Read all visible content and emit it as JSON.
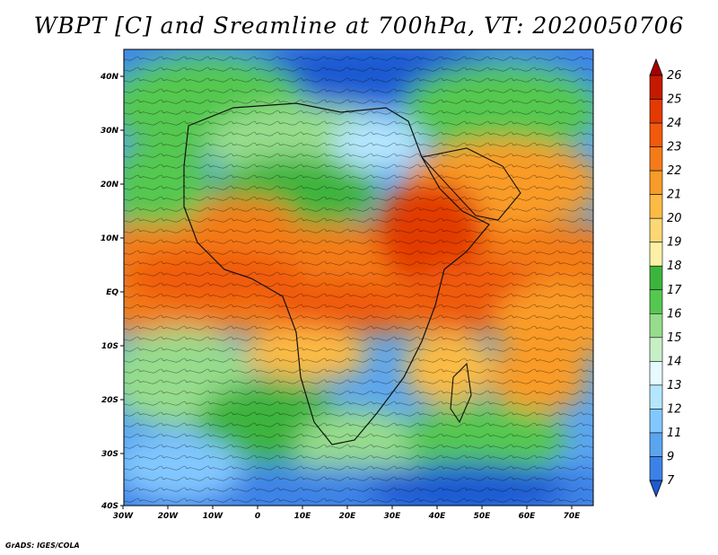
{
  "title": "WBPT [C] and Sreamline at 700hPa, VT: 2020050706",
  "credit": "GrADS: IGES/COLA",
  "map": {
    "lon_labels": [
      "30W",
      "20W",
      "10W",
      "0",
      "10E",
      "20E",
      "30E",
      "40E",
      "50E",
      "60E",
      "70E"
    ],
    "lat_labels": [
      "40N",
      "30N",
      "20N",
      "10N",
      "EQ",
      "10S",
      "20S",
      "30S",
      "40S"
    ],
    "lon_range": [
      -30,
      75
    ],
    "lat_range": [
      -40,
      45
    ]
  },
  "colorbar": {
    "labels": [
      "26",
      "25",
      "24",
      "23",
      "22",
      "21",
      "20",
      "19",
      "18",
      "17",
      "16",
      "15",
      "14",
      "13",
      "12",
      "11",
      "9",
      "7"
    ],
    "colors": [
      "#a50000",
      "#c51a00",
      "#e23a00",
      "#f05a0a",
      "#f47b18",
      "#f99b28",
      "#fbbb45",
      "#fcd774",
      "#fcf0a6",
      "#3cb43c",
      "#55c850",
      "#96dc8c",
      "#c8f0c8",
      "#e6faff",
      "#b4e6ff",
      "#82c8ff",
      "#5aa5f0",
      "#3c82e6",
      "#1e5ad2"
    ]
  }
}
